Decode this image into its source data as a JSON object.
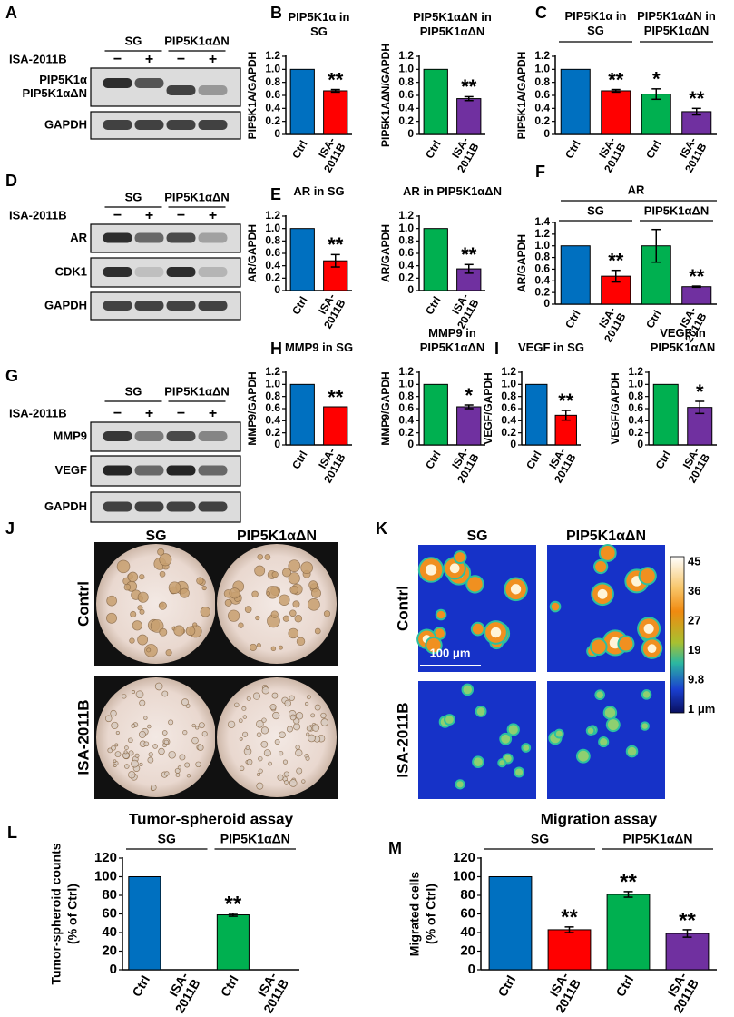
{
  "chart_data": [
    {
      "type": "bar",
      "letter": "B",
      "title": "PIP5K1α in SG",
      "ylabel": "PIP5K1A/GAPDH",
      "categories": [
        "Ctrl",
        "ISA-2011B"
      ],
      "values": [
        1.0,
        0.67
      ],
      "errors": [
        0,
        0.02
      ],
      "significance": [
        null,
        "**"
      ],
      "colors": [
        "#0070c0",
        "#ff0000"
      ],
      "ylim": [
        0,
        1.2
      ],
      "yticks": [
        0,
        0.2,
        0.4,
        0.6,
        0.8,
        {
          "value": 1,
          "label": "1.0"
        },
        1.2
      ]
    },
    {
      "type": "bar",
      "title": "PIP5K1αΔN in PIP5K1αΔN",
      "ylabel": "PIP5K1AΔN/GAPDH",
      "categories": [
        "Ctrl",
        "ISA-2011B"
      ],
      "values": [
        1.0,
        0.55
      ],
      "errors": [
        0,
        0.03
      ],
      "significance": [
        null,
        "**"
      ],
      "colors": [
        "#00b050",
        "#7030a0"
      ],
      "ylim": [
        0,
        1.2
      ],
      "yticks": [
        0,
        0.2,
        0.4,
        0.6,
        0.8,
        {
          "value": 1,
          "label": "1.0"
        },
        1.2
      ]
    },
    {
      "type": "bar",
      "letter": "C",
      "group_titles": [
        "PIP5K1α in SG",
        "PIP5K1αΔN in PIP5K1αΔN"
      ],
      "ylabel": "PIP5K1A/GAPDH",
      "categories": [
        "Ctrl",
        "ISA-2011B",
        "Ctrl",
        "ISA-2011B"
      ],
      "values": [
        1.0,
        0.67,
        0.62,
        0.35
      ],
      "errors": [
        0,
        0.02,
        0.08,
        0.05
      ],
      "significance": [
        null,
        "**",
        "*",
        "**"
      ],
      "colors": [
        "#0070c0",
        "#ff0000",
        "#00b050",
        "#7030a0"
      ],
      "ylim": [
        0,
        1.2
      ],
      "yticks": [
        0,
        0.2,
        0.4,
        0.6,
        0.8,
        {
          "value": 1,
          "label": "1.0"
        },
        1.2
      ]
    },
    {
      "type": "bar",
      "letter": "E",
      "title": "AR in SG",
      "ylabel": "AR/GAPDH",
      "categories": [
        "Ctrl",
        "ISA-2011B"
      ],
      "values": [
        1.0,
        0.48
      ],
      "errors": [
        0,
        0.1
      ],
      "significance": [
        null,
        "**"
      ],
      "colors": [
        "#0070c0",
        "#ff0000"
      ],
      "ylim": [
        0,
        1.2
      ],
      "yticks": [
        0,
        0.2,
        0.4,
        0.6,
        0.8,
        {
          "value": 1,
          "label": "1.0"
        },
        1.2
      ]
    },
    {
      "type": "bar",
      "title": "AR in PIP5K1αΔN",
      "ylabel": "AR/GAPDH",
      "categories": [
        "Ctrl",
        "ISA-2011B"
      ],
      "values": [
        1.0,
        0.35
      ],
      "errors": [
        0,
        0.07
      ],
      "significance": [
        null,
        "**"
      ],
      "colors": [
        "#00b050",
        "#7030a0"
      ],
      "ylim": [
        0,
        1.2
      ],
      "yticks": [
        0,
        0.2,
        0.4,
        0.6,
        0.8,
        {
          "value": 1,
          "label": "1.0"
        },
        1.2
      ]
    },
    {
      "type": "bar",
      "letter": "F",
      "title": "AR",
      "groups": [
        "SG",
        "PIP5K1αΔN"
      ],
      "ylabel": "AR/GAPDH",
      "categories": [
        "Ctrl",
        "ISA-2011B",
        "Ctrl",
        "ISA-2011B"
      ],
      "values": [
        1.0,
        0.48,
        1.0,
        0.3
      ],
      "errors": [
        0,
        0.1,
        0.28,
        0.01
      ],
      "significance": [
        null,
        "**",
        null,
        "**"
      ],
      "colors": [
        "#0070c0",
        "#ff0000",
        "#00b050",
        "#7030a0"
      ],
      "ylim": [
        0,
        1.4
      ],
      "yticks": [
        0,
        0.2,
        0.4,
        0.6,
        0.8,
        {
          "value": 1,
          "label": "1.0"
        },
        1.2,
        1.4
      ]
    },
    {
      "type": "bar",
      "letter": "H",
      "title": "MMP9 in SG",
      "ylabel": "MMP9/GAPDH",
      "categories": [
        "Ctrl",
        "ISA-2011B"
      ],
      "values": [
        1.0,
        0.63
      ],
      "errors": [
        0,
        0
      ],
      "significance": [
        null,
        "**"
      ],
      "colors": [
        "#0070c0",
        "#ff0000"
      ],
      "ylim": [
        0,
        1.2
      ],
      "yticks": [
        0,
        0.2,
        0.4,
        0.6,
        0.8,
        {
          "value": 1,
          "label": "1.0"
        },
        1.2
      ]
    },
    {
      "type": "bar",
      "title": "MMP9 in PIP5K1αΔN",
      "ylabel": "MMP9/GAPDH",
      "categories": [
        "Ctrl",
        "ISA-2011B"
      ],
      "values": [
        1.0,
        0.63
      ],
      "errors": [
        0,
        0.03
      ],
      "significance": [
        null,
        "*"
      ],
      "colors": [
        "#00b050",
        "#7030a0"
      ],
      "ylim": [
        0,
        1.2
      ],
      "yticks": [
        0,
        0.2,
        0.4,
        0.6,
        0.8,
        {
          "value": 1,
          "label": "1.0"
        },
        1.2
      ]
    },
    {
      "type": "bar",
      "letter": "I",
      "title": "VEGF in SG",
      "ylabel": "VEGF/GAPDH",
      "categories": [
        "Ctrl",
        "ISA-2011B"
      ],
      "values": [
        1.0,
        0.49
      ],
      "errors": [
        0,
        0.08
      ],
      "significance": [
        null,
        "**"
      ],
      "colors": [
        "#0070c0",
        "#ff0000"
      ],
      "ylim": [
        0,
        1.2
      ],
      "yticks": [
        0,
        0.2,
        0.4,
        0.6,
        0.8,
        {
          "value": 1,
          "label": "1.0"
        },
        1.2
      ]
    },
    {
      "type": "bar",
      "title": "VEGF in PIP5K1αΔN",
      "ylabel": "VEGF/GAPDH",
      "categories": [
        "Ctrl",
        "ISA-2011B"
      ],
      "values": [
        1.0,
        0.62
      ],
      "errors": [
        0,
        0.1
      ],
      "significance": [
        null,
        "*"
      ],
      "colors": [
        "#00b050",
        "#7030a0"
      ],
      "ylim": [
        0,
        1.2
      ],
      "yticks": [
        0,
        0.2,
        0.4,
        0.6,
        0.8,
        {
          "value": 1,
          "label": "1.0"
        },
        1.2
      ]
    },
    {
      "type": "bar",
      "letter": "L",
      "title": "Tumor-spheroid assay",
      "groups": [
        "SG",
        "PIP5K1αΔN"
      ],
      "ylabel": [
        "Tumor-spheroid counts",
        "(% of Ctrl)"
      ],
      "categories": [
        "Ctrl",
        "ISA-2011B",
        "Ctrl",
        "ISA-2011B"
      ],
      "values": [
        100,
        0,
        59,
        0
      ],
      "errors": [
        0,
        0,
        1.5,
        0
      ],
      "significance": [
        null,
        null,
        "**",
        null
      ],
      "colors": [
        "#0070c0",
        "#ff0000",
        "#00b050",
        "#7030a0"
      ],
      "ylim": [
        0,
        120
      ],
      "yticks": [
        0,
        20,
        40,
        60,
        80,
        100,
        120
      ]
    },
    {
      "type": "bar",
      "letter": "M",
      "title": "Migration assay",
      "groups": [
        "SG",
        "PIP5K1αΔN"
      ],
      "ylabel": [
        "Migrated cells",
        "(% of Ctrl)"
      ],
      "categories": [
        "Ctrl",
        "ISA-2011B",
        "Ctrl",
        "ISA-2011B"
      ],
      "values": [
        100,
        43,
        81,
        39
      ],
      "errors": [
        0,
        3,
        3,
        4
      ],
      "significance": [
        null,
        "**",
        "**",
        "**"
      ],
      "colors": [
        "#0070c0",
        "#ff0000",
        "#00b050",
        "#7030a0"
      ],
      "ylim": [
        0,
        120
      ],
      "yticks": [
        0,
        20,
        40,
        60,
        80,
        100,
        120
      ]
    }
  ],
  "blots": [
    {
      "letter": "A",
      "groups": [
        "SG",
        "PIP5K1αΔN"
      ],
      "treatment": "ISA-2011B",
      "signs": [
        "−",
        "+",
        "−",
        "+"
      ],
      "rows": [
        [
          "PIP5K1α",
          "PIP5K1αΔN"
        ],
        [
          "GAPDH"
        ]
      ]
    },
    {
      "letter": "D",
      "groups": [
        "SG",
        "PIP5K1αΔN"
      ],
      "treatment": "ISA-2011B",
      "signs": [
        "−",
        "+",
        "−",
        "+"
      ],
      "rows": [
        [
          "AR"
        ],
        [
          "CDK1"
        ],
        [
          "GAPDH"
        ]
      ]
    },
    {
      "letter": "G",
      "groups": [
        "SG",
        "PIP5K1αΔN"
      ],
      "treatment": "ISA-2011B",
      "signs": [
        "−",
        "+",
        "−",
        "+"
      ],
      "rows": [
        [
          "MMP9"
        ],
        [
          "VEGF"
        ],
        [
          "GAPDH"
        ]
      ]
    }
  ],
  "images": [
    {
      "letter": "J",
      "columns": [
        "SG",
        "PIP5K1αΔN"
      ],
      "rows": [
        "Contrl",
        "ISA-2011B"
      ]
    },
    {
      "letter": "K",
      "columns": [
        "SG",
        "PIP5K1αΔN"
      ],
      "rows": [
        "Contrl",
        "ISA-2011B"
      ],
      "scale_bar": "100 μm",
      "colorbar_labels": [
        "45",
        "36",
        "27",
        "19",
        "9.8",
        "1 μm"
      ]
    }
  ]
}
